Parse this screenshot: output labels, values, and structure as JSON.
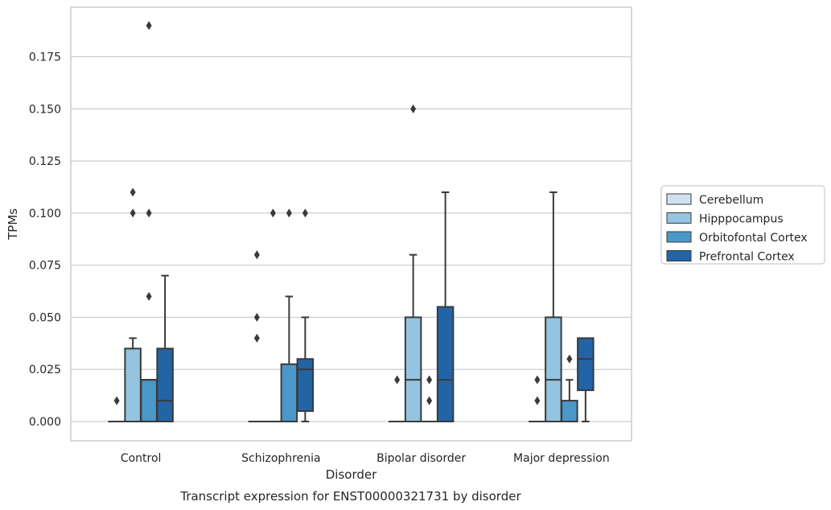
{
  "caption": "Transcript expression for ENST00000321731 by disorder",
  "chart_data": {
    "type": "box",
    "xlabel": "Disorder",
    "ylabel": "TPMs",
    "ylim": [
      -0.009,
      0.2
    ],
    "yticks": [
      "0.000",
      "0.025",
      "0.050",
      "0.075",
      "0.100",
      "0.125",
      "0.150",
      "0.175"
    ],
    "grid": "horizontal",
    "legend_position": "right",
    "categories": [
      "Control",
      "Schizophrenia",
      "Bipolar disorder",
      "Major depression"
    ],
    "series": [
      {
        "name": "Cerebellum",
        "color": "#d0e1f2",
        "boxes": [
          {
            "min": 0,
            "q1": 0,
            "median": 0,
            "q3": 0,
            "max": 0,
            "outliers": [
              0.01
            ]
          },
          {
            "min": 0,
            "q1": 0,
            "median": 0,
            "q3": 0,
            "max": 0,
            "outliers": [
              0.04,
              0.05,
              0.08
            ]
          },
          {
            "min": 0,
            "q1": 0,
            "median": 0,
            "q3": 0,
            "max": 0,
            "outliers": [
              0.02
            ]
          },
          {
            "min": 0,
            "q1": 0,
            "median": 0,
            "q3": 0,
            "max": 0,
            "outliers": [
              0.01,
              0.02
            ]
          }
        ]
      },
      {
        "name": "Hipppocampus",
        "color": "#94c4df",
        "boxes": [
          {
            "min": 0,
            "q1": 0,
            "median": 0,
            "q3": 0.035,
            "max": 0.04,
            "outliers": [
              0.1,
              0.11
            ]
          },
          {
            "min": 0,
            "q1": 0,
            "median": 0,
            "q3": 0,
            "max": 0,
            "outliers": [
              0.1
            ]
          },
          {
            "min": 0,
            "q1": 0,
            "median": 0.02,
            "q3": 0.05,
            "max": 0.08,
            "outliers": [
              0.15
            ]
          },
          {
            "min": 0,
            "q1": 0,
            "median": 0.02,
            "q3": 0.05,
            "max": 0.11,
            "outliers": []
          }
        ]
      },
      {
        "name": "Orbitofontal Cortex",
        "color": "#4a98c9",
        "boxes": [
          {
            "min": 0,
            "q1": 0,
            "median": 0.02,
            "q3": 0.02,
            "max": 0.02,
            "outliers": [
              0.06,
              0.1,
              0.19
            ]
          },
          {
            "min": 0,
            "q1": 0,
            "median": 0,
            "q3": 0.0275,
            "max": 0.06,
            "outliers": [
              0.1
            ]
          },
          {
            "min": 0,
            "q1": 0,
            "median": 0,
            "q3": 0,
            "max": 0,
            "outliers": [
              0.01,
              0.02
            ]
          },
          {
            "min": 0,
            "q1": 0,
            "median": 0,
            "q3": 0.01,
            "max": 0.02,
            "outliers": [
              0.03
            ]
          }
        ]
      },
      {
        "name": "Prefrontal Cortex",
        "color": "#2264a6",
        "boxes": [
          {
            "min": 0,
            "q1": 0,
            "median": 0.01,
            "q3": 0.035,
            "max": 0.07,
            "outliers": []
          },
          {
            "min": 0,
            "q1": 0.005,
            "median": 0.025,
            "q3": 0.03,
            "max": 0.05,
            "outliers": [
              0.1
            ]
          },
          {
            "min": 0,
            "q1": 0,
            "median": 0.02,
            "q3": 0.055,
            "max": 0.11,
            "outliers": []
          },
          {
            "min": 0,
            "q1": 0.015,
            "median": 0.03,
            "q3": 0.04,
            "max": 0.04,
            "outliers": []
          }
        ]
      }
    ]
  }
}
